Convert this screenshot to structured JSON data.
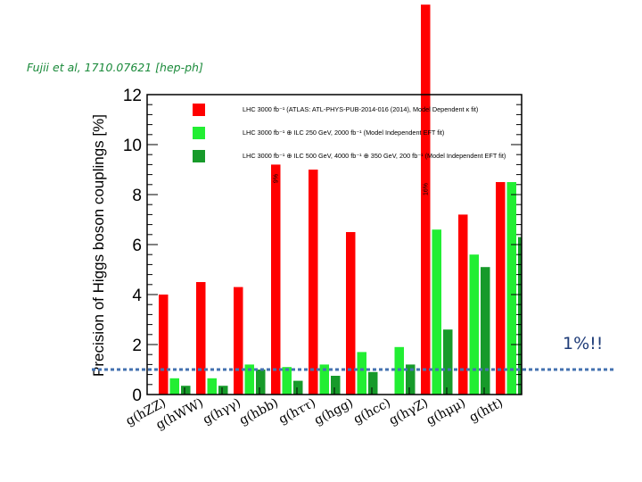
{
  "citation": "Fujii et al, 1710.07621 [hep-ph]",
  "callout": "1%!!",
  "chart_data": {
    "type": "bar",
    "ylabel": "Precision of Higgs boson couplings [%]",
    "ylim": [
      0,
      12
    ],
    "yticks": [
      0,
      2,
      4,
      6,
      8,
      10,
      12
    ],
    "categories": [
      "g(hZZ)",
      "g(hWW)",
      "g(hγγ)",
      "g(hbb)",
      "g(hττ)",
      "g(hgg)",
      "g(hcc)",
      "g(hγZ)",
      "g(hμμ)",
      "g(htt)"
    ],
    "reference_line": 1,
    "series": [
      {
        "name": "LHC 3000 fb⁻¹ (ATLAS: ATL-PHYS-PUB-2014-016 (2014), Model Dependent κ fit)",
        "color": "#ff0000",
        "values": [
          4.0,
          4.5,
          4.3,
          9.2,
          9.0,
          6.5,
          null,
          15.6,
          7.2,
          8.5
        ],
        "bar_labels": [
          "",
          "",
          "",
          "9%",
          "",
          "",
          "",
          "16%",
          "",
          ""
        ]
      },
      {
        "name": "LHC 3000 fb⁻¹ ⊕ ILC 250 GeV, 2000 fb⁻¹ (Model Independent EFT fit)",
        "color": "#22ee33",
        "values": [
          0.65,
          0.65,
          1.2,
          1.1,
          1.2,
          1.7,
          1.9,
          6.6,
          5.6,
          8.5
        ],
        "bar_labels": []
      },
      {
        "name": "LHC 3000 fb⁻¹ ⊕ ILC 500 GeV, 4000 fb⁻¹ ⊕ 350 GeV, 200 fb⁻¹ (Model Independent EFT fit)",
        "color": "#179a2a",
        "values": [
          0.35,
          0.35,
          1.0,
          0.55,
          0.75,
          0.9,
          1.2,
          2.6,
          5.1,
          6.3
        ],
        "bar_labels": []
      }
    ]
  }
}
